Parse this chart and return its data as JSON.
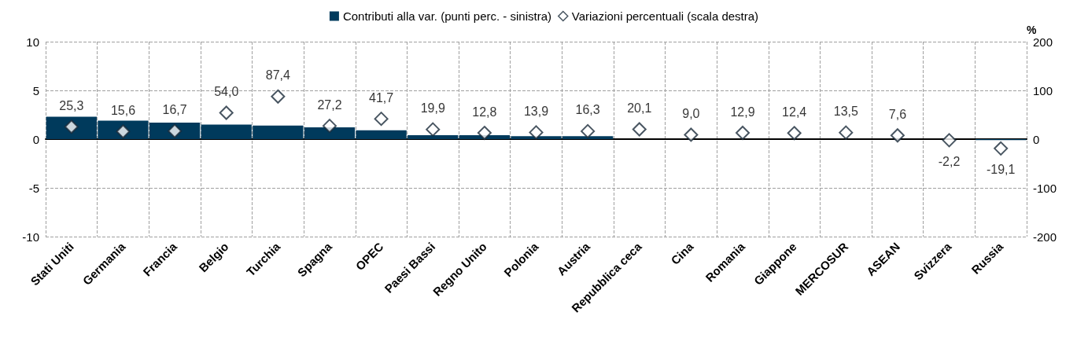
{
  "chart_data": {
    "type": "bar",
    "categories": [
      "Stati Uniti",
      "Germania",
      "Francia",
      "Belgio",
      "Turchia",
      "Spagna",
      "OPEC",
      "Paesi Bassi",
      "Regno Unito",
      "Polonia",
      "Austria",
      "Repubblica ceca",
      "Cina",
      "Romania",
      "Giappone",
      "MERCOSUR",
      "ASEAN",
      "Svizzera",
      "Russia"
    ],
    "series": [
      {
        "name": "Contributi alla var. (punti perc. - sinistra)",
        "color": "#003a5c",
        "values": [
          2.3,
          1.9,
          1.7,
          1.5,
          1.4,
          1.2,
          0.9,
          0.4,
          0.4,
          0.3,
          0.3,
          null,
          null,
          null,
          null,
          null,
          null,
          null,
          -0.1
        ]
      },
      {
        "name": "Variazioni percentuali (scala destra)",
        "type": "scatter",
        "axis": "y2",
        "color": "#ffffff",
        "marker": "diamond",
        "values": [
          25.3,
          15.6,
          16.7,
          54.0,
          87.4,
          27.2,
          41.7,
          19.9,
          12.8,
          13.9,
          16.3,
          20.1,
          9.0,
          12.9,
          12.4,
          13.5,
          7.6,
          -2.2,
          -19.1
        ],
        "value_labels": [
          "25,3",
          "15,6",
          "16,7",
          "54,0",
          "87,4",
          "27,2",
          "41,7",
          "19,9",
          "12,8",
          "13,9",
          "16,3",
          "20,1",
          "9,0",
          "12,9",
          "12,4",
          "13,5",
          "7,6",
          "-2,2",
          "-19,1"
        ]
      }
    ],
    "y2label": "%",
    "ylim": [
      -10,
      10
    ],
    "yticks": [
      -10,
      -5,
      0,
      5,
      10
    ],
    "y2lim": [
      -200,
      200
    ],
    "y2ticks": [
      -200,
      -100,
      0,
      100,
      200
    ],
    "grid": true,
    "legend": "top"
  }
}
